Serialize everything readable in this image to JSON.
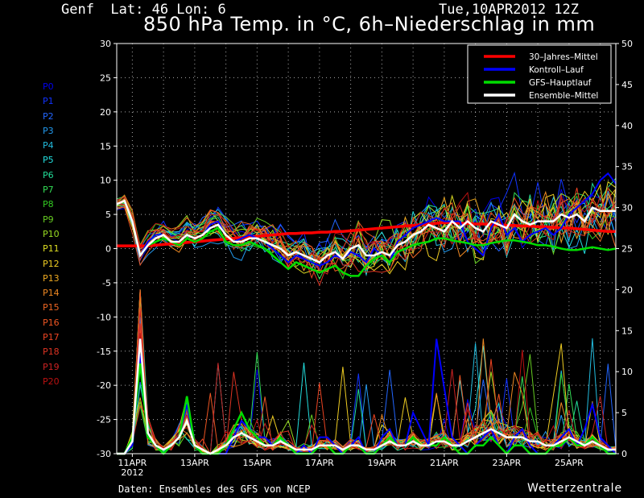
{
  "header": {
    "location": "Genf  Lat: 46 Lon: 6",
    "date": "Tue,10APR2012 12Z",
    "title": "850 hPa Temp. in °C, 6h–Niederschlag in mm"
  },
  "footer": {
    "source": "Daten: Ensembles des GFS von NCEP",
    "brand": "Wetterzentrale"
  },
  "members": [
    {
      "label": "P0",
      "color": "#0000ee"
    },
    {
      "label": "P1",
      "color": "#1133ff"
    },
    {
      "label": "P2",
      "color": "#2266ff"
    },
    {
      "label": "P3",
      "color": "#2299ee"
    },
    {
      "label": "P4",
      "color": "#22bbdd"
    },
    {
      "label": "P5",
      "color": "#22dddd"
    },
    {
      "label": "P6",
      "color": "#22dd99"
    },
    {
      "label": "P7",
      "color": "#33dd55"
    },
    {
      "label": "P8",
      "color": "#33cc22"
    },
    {
      "label": "P9",
      "color": "#66cc22"
    },
    {
      "label": "P10",
      "color": "#99dd22"
    },
    {
      "label": "P11",
      "color": "#dddd22"
    },
    {
      "label": "P12",
      "color": "#eecc22"
    },
    {
      "label": "P13",
      "color": "#eeaa22"
    },
    {
      "label": "P14",
      "color": "#ee8822"
    },
    {
      "label": "P15",
      "color": "#ee6622"
    },
    {
      "label": "P16",
      "color": "#ee5522"
    },
    {
      "label": "P17",
      "color": "#ee4422"
    },
    {
      "label": "P18",
      "color": "#dd3322"
    },
    {
      "label": "P19",
      "color": "#cc2222"
    },
    {
      "label": "P20",
      "color": "#bb1111"
    }
  ],
  "chart_data": {
    "type": "line",
    "title": "850 hPa Temp. in °C, 6h–Niederschlag in mm",
    "y_left": {
      "range": [
        -30,
        30
      ],
      "ticks": [
        -30,
        -25,
        -20,
        -15,
        -10,
        -5,
        0,
        5,
        10,
        15,
        20,
        25,
        30
      ],
      "unit": "°C"
    },
    "y_right": {
      "range": [
        0,
        50
      ],
      "ticks": [
        0,
        5,
        10,
        15,
        20,
        25,
        30,
        35,
        40,
        45,
        50
      ],
      "unit": "mm"
    },
    "x_range_steps": [
      0,
      64
    ],
    "x_ticks": [
      {
        "step": 2,
        "label": "11APR",
        "sublabel": "2012"
      },
      {
        "step": 10,
        "label": "13APR"
      },
      {
        "step": 18,
        "label": "15APR"
      },
      {
        "step": 26,
        "label": "17APR"
      },
      {
        "step": 34,
        "label": "19APR"
      },
      {
        "step": 42,
        "label": "21APR"
      },
      {
        "step": 50,
        "label": "23APR"
      },
      {
        "step": 58,
        "label": "25APR"
      }
    ],
    "grid": true,
    "legend_position": "top-right",
    "legend": [
      {
        "label": "30–Jahres–Mittel",
        "color": "#ff0000"
      },
      {
        "label": "Kontroll–Lauf",
        "color": "#0000ff"
      },
      {
        "label": "GFS–Hauptlauf",
        "color": "#00dd00"
      },
      {
        "label": "Ensemble–Mittel",
        "color": "#ffffff"
      }
    ],
    "temperature_series": [
      {
        "name": "30–Jahres–Mittel",
        "color": "#ff0000",
        "width": 3.5,
        "values": [
          0.4,
          0.4,
          0.4,
          0.4,
          0.4,
          0.5,
          0.6,
          0.7,
          0.8,
          0.9,
          1.0,
          1.1,
          1.2,
          1.3,
          1.4,
          1.5,
          1.6,
          1.7,
          1.8,
          1.9,
          2.0,
          2.1,
          2.2,
          2.2,
          2.3,
          2.3,
          2.4,
          2.4,
          2.5,
          2.5,
          2.6,
          2.7,
          2.8,
          2.9,
          3.0,
          3.1,
          3.2,
          3.3,
          3.4,
          3.5,
          3.6,
          3.7,
          3.8,
          3.8,
          3.7,
          3.7,
          3.6,
          3.6,
          3.5,
          3.5,
          3.4,
          3.4,
          3.3,
          3.3,
          3.2,
          3.2,
          3.1,
          3.0,
          3.0,
          2.9,
          2.8,
          2.7,
          2.6,
          2.5,
          2.5
        ]
      },
      {
        "name": "Kontroll–Lauf",
        "color": "#0000ff",
        "width": 2,
        "values": [
          6.5,
          7,
          4,
          -1,
          1,
          2,
          2,
          1,
          1,
          2,
          1.5,
          2,
          3.5,
          4,
          2,
          1,
          1.5,
          2,
          1.5,
          1,
          0,
          -1,
          -2,
          -1,
          -1.5,
          -2,
          -2.5,
          -2,
          -1,
          -1.5,
          -0.5,
          -1,
          -2,
          0,
          -1,
          -2,
          1,
          2,
          3,
          3.5,
          4,
          4.5,
          4,
          4,
          4,
          1,
          0,
          -1,
          3,
          5,
          2,
          3,
          1,
          2,
          2.5,
          3,
          2,
          3,
          5,
          6,
          7,
          8,
          10,
          11,
          9.5
        ]
      },
      {
        "name": "GFS–Hauptlauf",
        "color": "#00dd00",
        "width": 2.5,
        "values": [
          6.5,
          7,
          4,
          -1,
          0.5,
          1,
          1.5,
          1,
          0.5,
          1.5,
          1,
          1.5,
          2.5,
          3,
          1,
          0.5,
          0.5,
          1,
          0.5,
          0,
          -1,
          -2,
          -3,
          -2,
          -2.5,
          -3,
          -3.5,
          -3,
          -2.5,
          -3.5,
          -4,
          -4,
          -2.5,
          -1.5,
          -1,
          -2,
          -0.5,
          0,
          0.5,
          0.8,
          1,
          1.5,
          1.5,
          1.2,
          1,
          0.8,
          0.5,
          0.5,
          0.8,
          1,
          1.2,
          1.2,
          1,
          0.8,
          0.5,
          0.5,
          0.3,
          0,
          -0.2,
          -0.2,
          0,
          0.2,
          0,
          -0.2,
          0
        ]
      },
      {
        "name": "Ensemble–Mittel",
        "color": "#ffffff",
        "width": 2.5,
        "values": [
          6.5,
          7,
          4,
          -1,
          0.5,
          1.5,
          2,
          1,
          1,
          2,
          1.5,
          2,
          3,
          3.5,
          2,
          1,
          1,
          1.5,
          1.5,
          1,
          0.5,
          0,
          -1,
          -0.5,
          -1,
          -1.5,
          -2,
          -1,
          -0.5,
          -1.5,
          0,
          0.5,
          -1,
          -1,
          -0.5,
          -1,
          0.5,
          1,
          2,
          2.5,
          3.5,
          3,
          2.5,
          4,
          3,
          4,
          3,
          2.5,
          4,
          3.5,
          3,
          5,
          4,
          3.5,
          4,
          4,
          4,
          5,
          4.5,
          5,
          4,
          6,
          5.5,
          5.5,
          5.5
        ]
      }
    ],
    "precip_series": [
      {
        "name": "Kontroll–Lauf",
        "color": "#0000ff",
        "width": 2,
        "values": [
          0,
          0,
          1,
          12,
          2,
          1,
          0,
          1,
          2,
          6,
          1,
          0,
          0,
          0,
          0,
          2,
          4,
          3,
          2,
          2,
          1,
          2,
          1,
          0,
          1,
          0,
          2,
          2,
          1,
          0,
          1,
          2,
          0,
          0,
          2,
          3,
          1,
          1,
          5,
          3,
          1,
          14,
          8,
          2,
          1,
          0,
          1,
          2,
          3,
          1,
          0,
          2,
          3,
          1,
          0,
          0,
          1,
          2,
          3,
          1,
          3,
          6,
          2,
          1,
          0
        ]
      },
      {
        "name": "GFS–Hauptlauf",
        "color": "#00dd00",
        "width": 2.5,
        "values": [
          0,
          0,
          2,
          11,
          2,
          1,
          0,
          1,
          2,
          7,
          1,
          0,
          0,
          0,
          1,
          3,
          5,
          3,
          2,
          1,
          1,
          2,
          1,
          0,
          0,
          0,
          1,
          1,
          0,
          0,
          1,
          1,
          0,
          0,
          1,
          2,
          1,
          1,
          2,
          1,
          1,
          1,
          2,
          1,
          0,
          0,
          1,
          1,
          2,
          1,
          0,
          1,
          1,
          0,
          0,
          0,
          1,
          1,
          2,
          1,
          1,
          2,
          1,
          0,
          0
        ]
      },
      {
        "name": "Ensemble–Mittel",
        "color": "#ffffff",
        "width": 2.5,
        "values": [
          0,
          0,
          1.5,
          14,
          2.5,
          1,
          0.5,
          1,
          2,
          4,
          1,
          0.5,
          0,
          0.5,
          1,
          2,
          2.5,
          2,
          1.5,
          1,
          1,
          1.5,
          1,
          0.5,
          0.5,
          0.5,
          1,
          1,
          1,
          0.5,
          1,
          1,
          0.5,
          0.5,
          1,
          1.5,
          1,
          1,
          1.5,
          1,
          1,
          1.5,
          1.5,
          1,
          1,
          1.5,
          2,
          2.5,
          3,
          2.5,
          2,
          2,
          2,
          1.5,
          1.5,
          1,
          1,
          1.5,
          2,
          1.5,
          1,
          1.5,
          1,
          0.5,
          0.5
        ]
      }
    ]
  }
}
